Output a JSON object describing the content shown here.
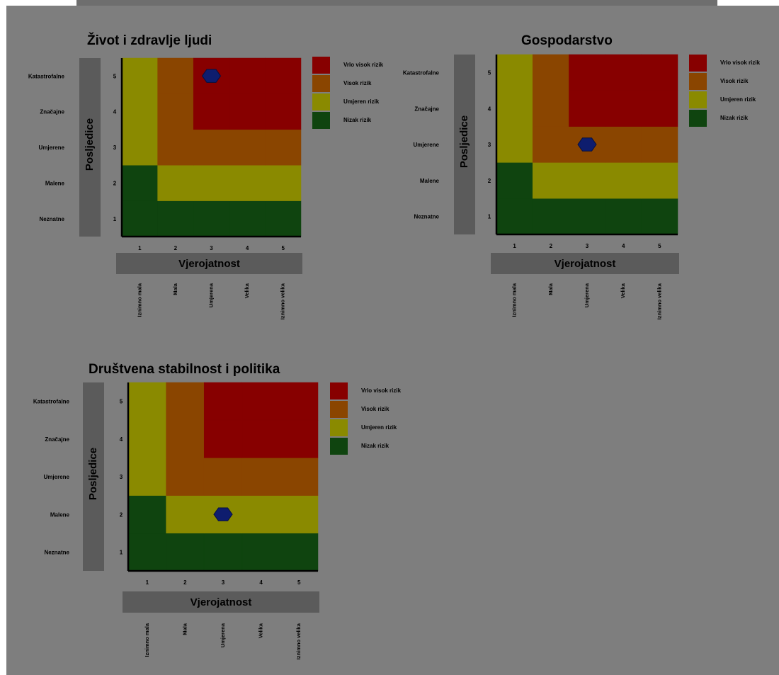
{
  "chart_data": [
    {
      "type": "heatmap",
      "title": "Život i zdravlje ljudi",
      "xlabel": "Vjerojatnost",
      "ylabel": "Posljedice",
      "x_ticks": [
        "1",
        "2",
        "3",
        "4",
        "5"
      ],
      "y_ticks": [
        "1",
        "2",
        "3",
        "4",
        "5"
      ],
      "x_categories": [
        "Iznimno mala",
        "Mala",
        "Umjerena",
        "Velika",
        "Iznimno velika"
      ],
      "y_categories": [
        "Neznatne",
        "Malene",
        "Umjerene",
        "Značajne",
        "Katastrofalne"
      ],
      "marker": {
        "x": 3,
        "y": 5
      },
      "legend": [
        "Vrlo visok rizik",
        "Visok rizik",
        "Umjeren rizik",
        "Nizak rizik"
      ]
    },
    {
      "type": "heatmap",
      "title": "Gospodarstvo",
      "xlabel": "Vjerojatnost",
      "ylabel": "Posljedice",
      "x_ticks": [
        "1",
        "2",
        "3",
        "4",
        "5"
      ],
      "y_ticks": [
        "1",
        "2",
        "3",
        "4",
        "5"
      ],
      "x_categories": [
        "Iznimno mala",
        "Mala",
        "Umjerena",
        "Velika",
        "Iznimno velika"
      ],
      "y_categories": [
        "Neznatne",
        "Malene",
        "Umjerene",
        "Značajne",
        "Katastrofalne"
      ],
      "marker": {
        "x": 3,
        "y": 3
      },
      "legend": [
        "Vrlo visok rizik",
        "Visok rizik",
        "Umjeren rizik",
        "Nizak rizik"
      ]
    },
    {
      "type": "heatmap",
      "title": "Društvena stabilnost i politika",
      "xlabel": "Vjerojatnost",
      "ylabel": "Posljedice",
      "x_ticks": [
        "1",
        "2",
        "3",
        "4",
        "5"
      ],
      "y_ticks": [
        "1",
        "2",
        "3",
        "4",
        "5"
      ],
      "x_categories": [
        "Iznimno mala",
        "Mala",
        "Umjerena",
        "Velika",
        "Iznimno velika"
      ],
      "y_categories": [
        "Neznatne",
        "Malene",
        "Umjerene",
        "Značajne",
        "Katastrofalne"
      ],
      "marker": {
        "x": 3,
        "y": 2
      },
      "legend": [
        "Vrlo visok rizik",
        "Visok rizik",
        "Umjeren rizik",
        "Nizak rizik"
      ]
    }
  ],
  "risk_matrix": [
    [
      "low",
      "low",
      "low",
      "low",
      "low"
    ],
    [
      "low",
      "moderate",
      "moderate",
      "moderate",
      "moderate"
    ],
    [
      "moderate",
      "high",
      "high",
      "high",
      "high"
    ],
    [
      "moderate",
      "high",
      "very_high",
      "very_high",
      "very_high"
    ],
    [
      "moderate",
      "high",
      "very_high",
      "very_high",
      "very_high"
    ]
  ],
  "colors": {
    "very_high": "#870000",
    "high": "#8a4500",
    "moderate": "#8a8a00",
    "low": "#0f440f",
    "marker": "#0e1d6e",
    "axis_box": "#5b5b5b",
    "text": "#000000",
    "white": "#ffffff"
  }
}
